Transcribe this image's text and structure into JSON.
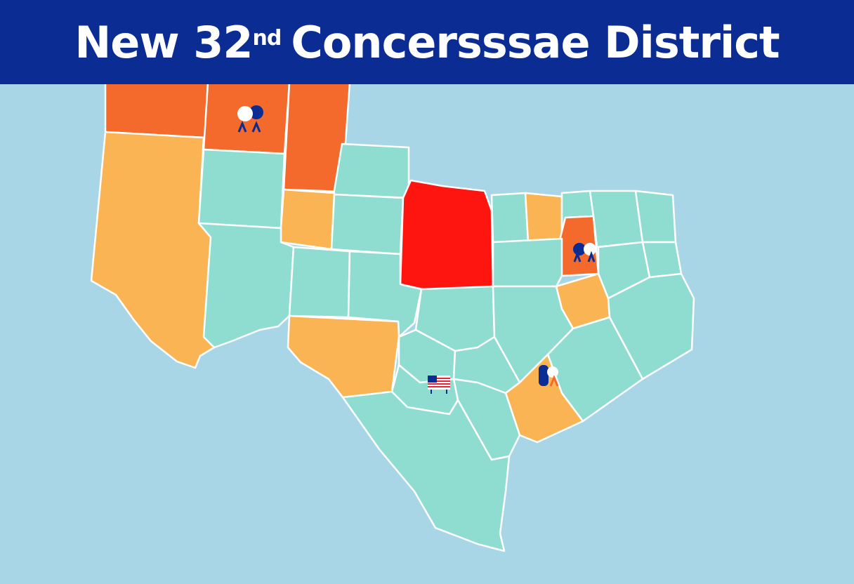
{
  "header": {
    "title_parts": [
      "New 32",
      "nd",
      "Concersssae District"
    ]
  }
}
